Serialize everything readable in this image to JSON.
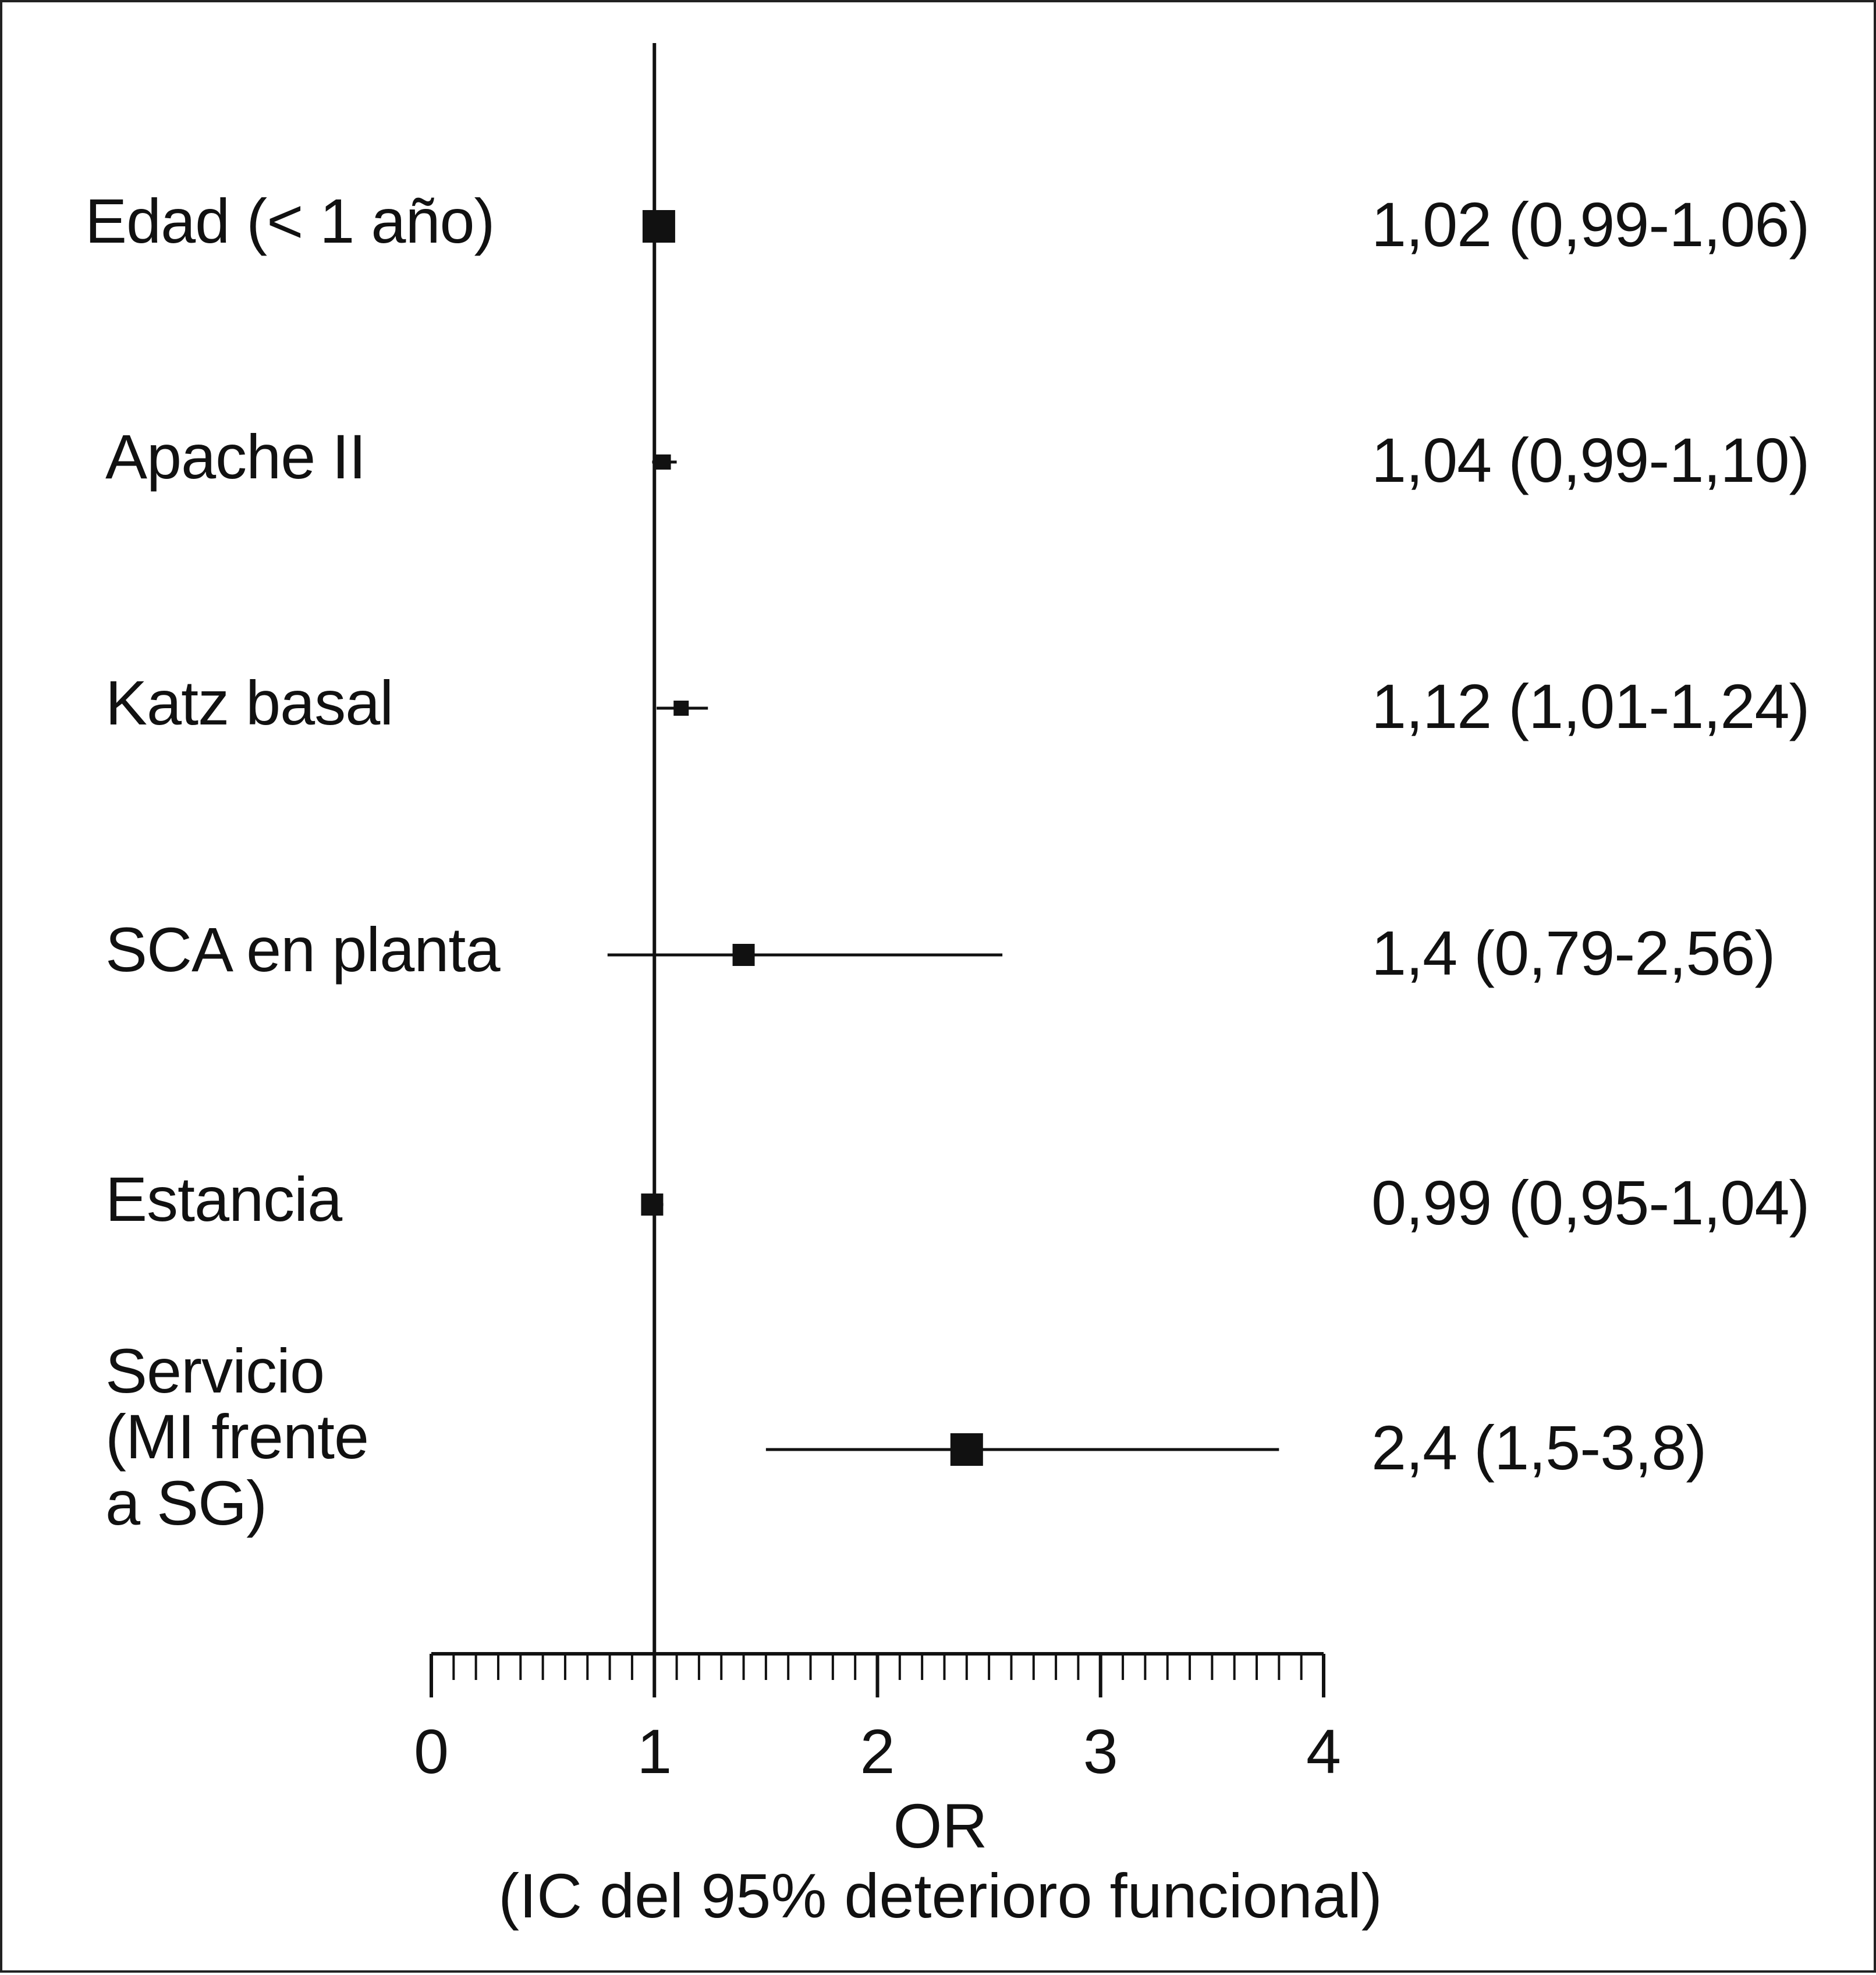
{
  "chart_data": {
    "type": "forest",
    "xlabel_line1": "OR",
    "xlabel_line2": "(IC del 95% deterioro funcional)",
    "xlim": [
      0,
      4
    ],
    "x_ticks": [
      "0",
      "1",
      "2",
      "3",
      "4"
    ],
    "reference_line": 1,
    "rows": [
      {
        "label": "Edad (< 1 año)",
        "or": 1.02,
        "lo": 0.99,
        "hi": 1.06,
        "text": "1,02 (0,99-1,06)",
        "weight": "large"
      },
      {
        "label": "Apache II",
        "or": 1.04,
        "lo": 0.99,
        "hi": 1.1,
        "text": "1,04 (0,99-1,10)",
        "weight": "small"
      },
      {
        "label": "Katz basal",
        "or": 1.12,
        "lo": 1.01,
        "hi": 1.24,
        "text": "1,12 (1,01-1,24)",
        "weight": "small"
      },
      {
        "label": "SCA en planta",
        "or": 1.4,
        "lo": 0.79,
        "hi": 2.56,
        "text": "1,4 (0,79-2,56)",
        "weight": "medium"
      },
      {
        "label": "Estancia",
        "or": 0.99,
        "lo": 0.95,
        "hi": 1.04,
        "text": "0,99 (0,95-1,04)",
        "weight": "medium"
      },
      {
        "label": "Servicio\n(MI frente\na SG)",
        "or": 2.4,
        "lo": 1.5,
        "hi": 3.8,
        "text": "2,4 (1,5-3,8)",
        "weight": "large"
      }
    ]
  }
}
